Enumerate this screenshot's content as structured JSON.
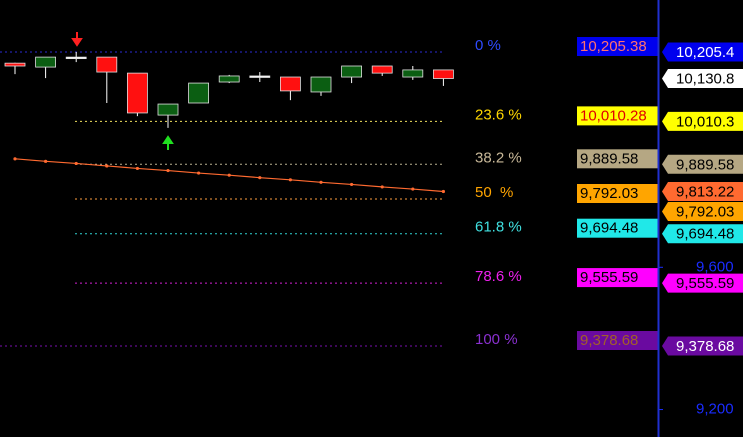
{
  "chart_data": {
    "type": "candlestick",
    "ylim": [
      9122.8,
      10351.6
    ],
    "yticks": [
      {
        "value": 9600,
        "label": "9,600"
      },
      {
        "value": 9200,
        "label": "9,200"
      }
    ],
    "tick_color": "#1a2cff",
    "up_color": "#0b5e12",
    "down_color": "#ff1010",
    "open": [
      10174,
      10163,
      10191,
      10191,
      10146,
      10028,
      10062,
      10121,
      10138,
      10135,
      10093,
      10135,
      10166,
      10135,
      10155
    ],
    "high": [
      10175,
      10191,
      10205.38,
      10191,
      10146,
      10059,
      10118,
      10141,
      10149,
      10135,
      10135,
      10166,
      10166,
      10166,
      10155
    ],
    "low": [
      10143,
      10132,
      10177,
      10062,
      10025,
      9992,
      10062,
      10118,
      10121,
      10070,
      10082,
      10118,
      10138,
      10127,
      10110
    ],
    "close": [
      10166,
      10191,
      10191,
      10149,
      10034,
      10059,
      10118,
      10138,
      10138,
      10096,
      10135,
      10166,
      10146,
      10155,
      10130.8
    ],
    "last_close_tag": {
      "value": 10130.8,
      "label": "10,130.8"
    },
    "moving_average": {
      "color": "#ff6a30",
      "values": [
        9905,
        9898,
        9892,
        9885,
        9878,
        9872,
        9865,
        9859,
        9852,
        9846,
        9839,
        9833,
        9826,
        9820,
        9813.22
      ],
      "tag": {
        "value": 9813.22,
        "label": "9,813.22"
      }
    },
    "fib_levels": [
      {
        "label": "0 %",
        "price": 10205.38,
        "price_label": "10,205.38",
        "tag": "10,205.4",
        "line": "#2a2ad0",
        "text": "#2f4bff",
        "box": "#0000ee",
        "box_text": "#ff7070",
        "tag_bg": "#0000ee",
        "tag_text": "#ffffff"
      },
      {
        "label": "23.6 %",
        "price": 10010.28,
        "price_label": "10,010.28",
        "tag": "10,010.3",
        "line": "#f0e060",
        "text": "#ffd700",
        "box": "#ffff00",
        "box_text": "#e00000",
        "tag_bg": "#ffff00",
        "tag_text": "#000000"
      },
      {
        "label": "38.2 %",
        "price": 9889.58,
        "price_label": "9,889.58",
        "tag": "9,889.58",
        "line": "#b8b090",
        "text": "#c8b898",
        "box": "#b5a783",
        "box_text": "#000000",
        "tag_bg": "#b5a783",
        "tag_text": "#000000"
      },
      {
        "label": "50  %",
        "price": 9792.03,
        "price_label": "9,792.03",
        "tag": "9,792.03",
        "line": "#ffa040",
        "text": "#ffa500",
        "box": "#ffa500",
        "box_text": "#000000",
        "tag_bg": "#ffa500",
        "tag_text": "#000000"
      },
      {
        "label": "61.8 %",
        "price": 9694.48,
        "price_label": "9,694.48",
        "tag": "9,694.48",
        "line": "#30d0d0",
        "text": "#40e0e0",
        "box": "#20e8e8",
        "box_text": "#000000",
        "tag_bg": "#20e8e8",
        "tag_text": "#000000"
      },
      {
        "label": "78.6 %",
        "price": 9555.59,
        "price_label": "9,555.59",
        "tag": "9,555.59",
        "line": "#d020d0",
        "text": "#ee20ee",
        "box": "#ff00ff",
        "box_text": "#000000",
        "tag_bg": "#ff00ff",
        "tag_text": "#000000"
      },
      {
        "label": "100 %",
        "price": 9378.68,
        "price_label": "9,378.68",
        "tag": "9,378.68",
        "line": "#7a10b0",
        "text": "#8a30d0",
        "box": "#6a0aa0",
        "box_text": "#a0602a",
        "tag_bg": "#6a0aa0",
        "tag_text": "#ffffff"
      }
    ]
  }
}
